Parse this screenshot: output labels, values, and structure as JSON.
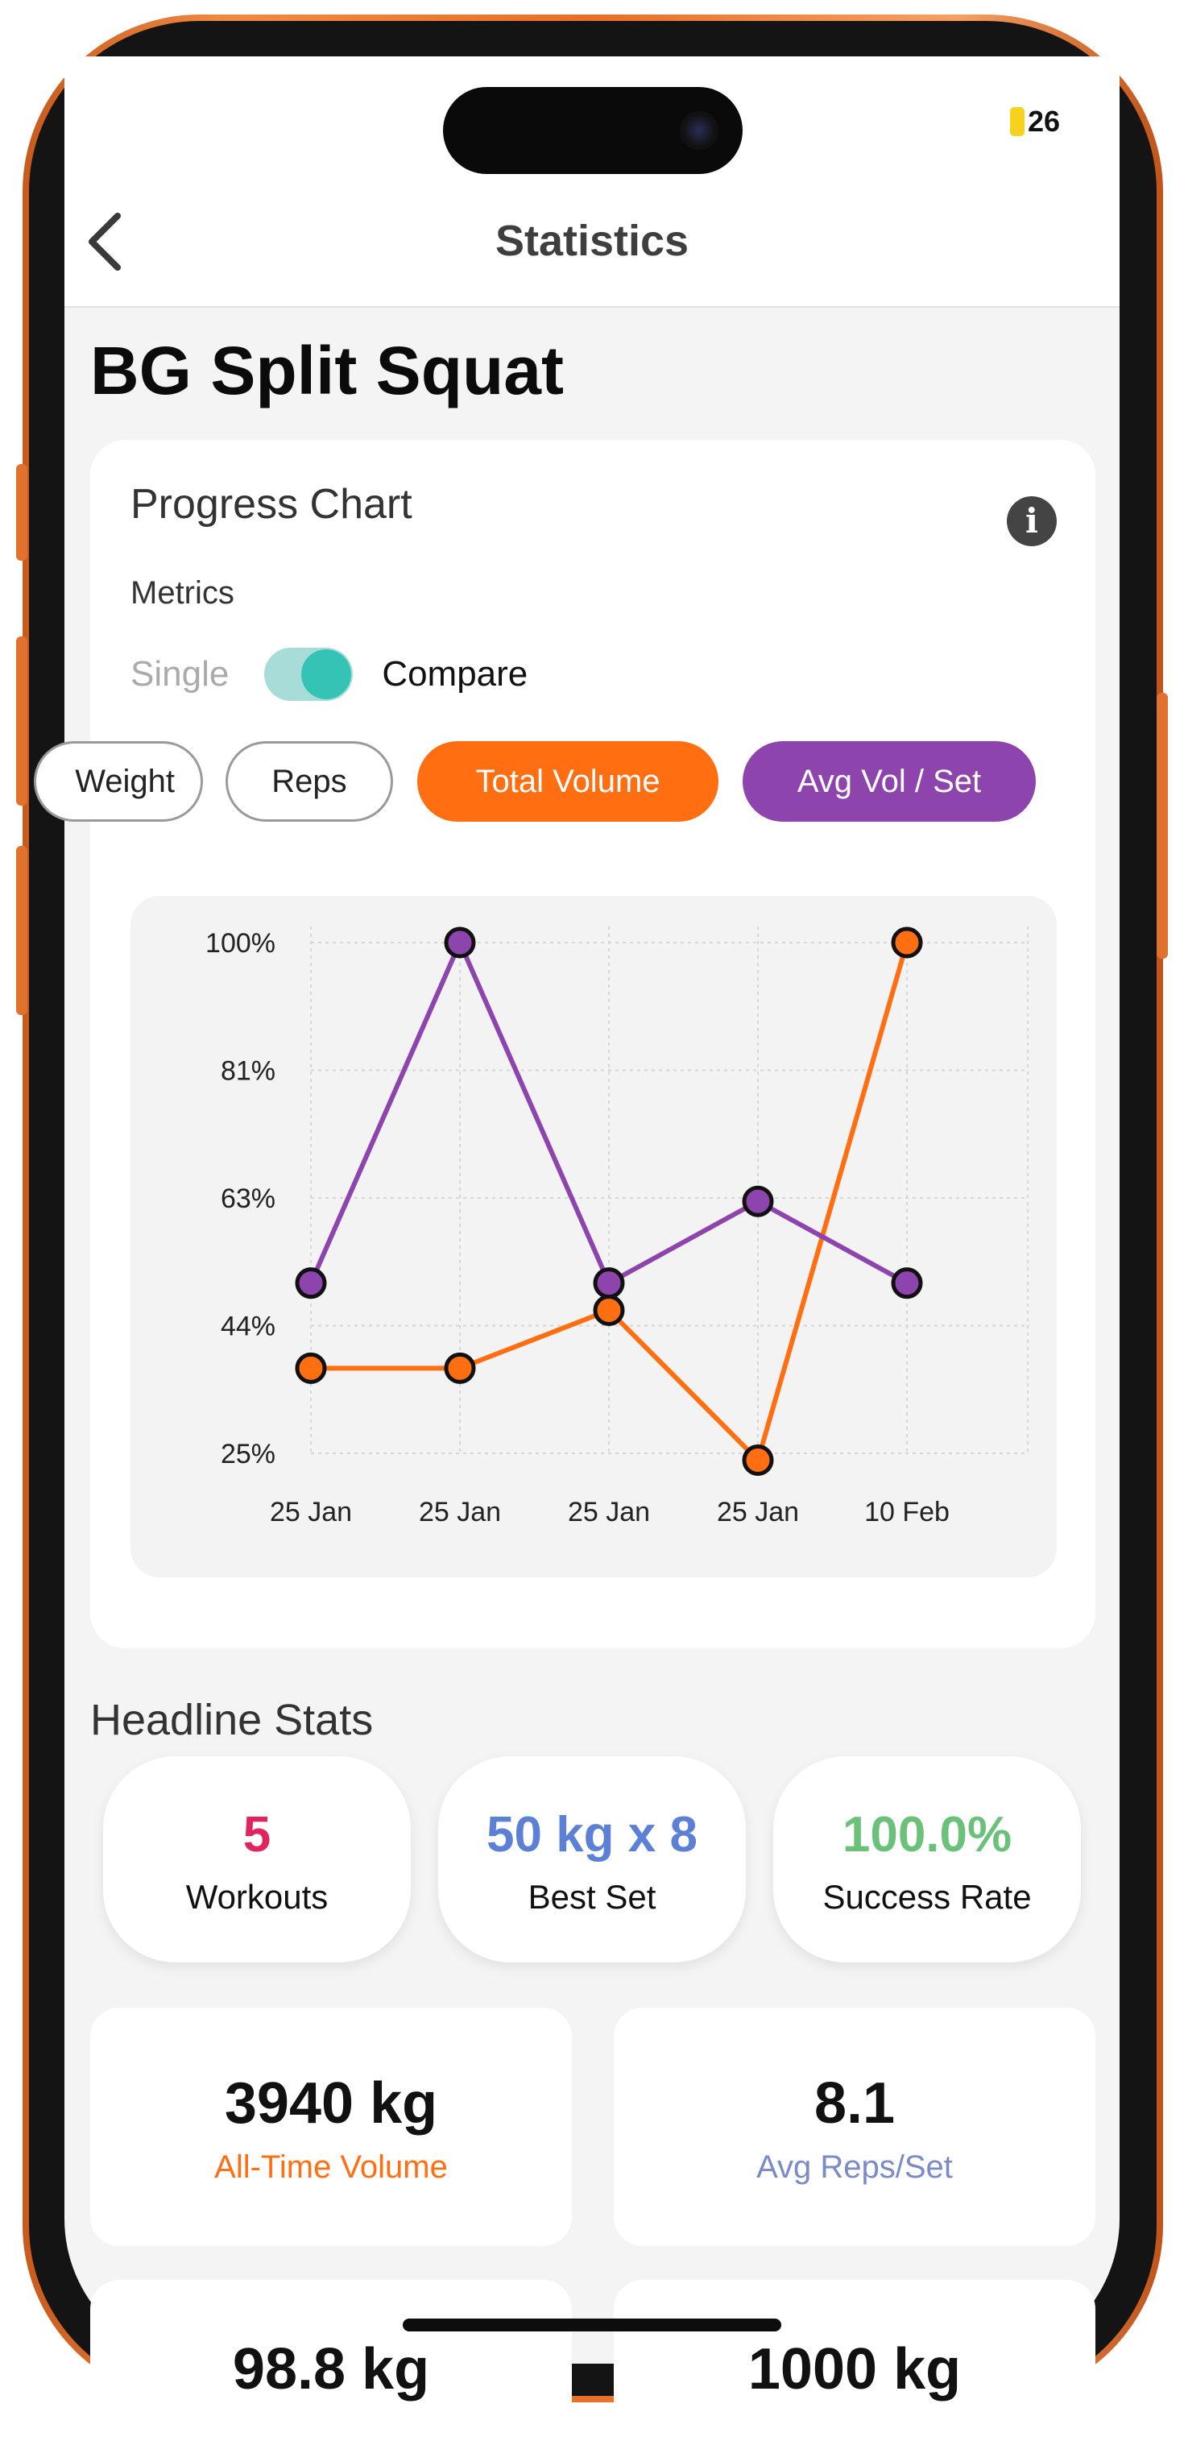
{
  "status": {
    "battery": "26"
  },
  "nav": {
    "title": "Statistics"
  },
  "page": {
    "title": "BG Split Squat"
  },
  "chart_card": {
    "title": "Progress Chart",
    "metrics_label": "Metrics",
    "mode_single": "Single",
    "mode_compare": "Compare",
    "compare_on": true,
    "chips": [
      {
        "label": "Weight",
        "state": "outline"
      },
      {
        "label": "Reps",
        "state": "outline"
      },
      {
        "label": "Total Volume",
        "state": "selected",
        "color": "#ff6e11"
      },
      {
        "label": "Avg Vol / Set",
        "state": "selected",
        "color": "#8d44ad"
      }
    ]
  },
  "chart_data": {
    "type": "line",
    "x": [
      "25 Jan",
      "25 Jan",
      "25 Jan",
      "25 Jan",
      "10 Feb"
    ],
    "yticks": [
      "100%",
      "81%",
      "63%",
      "44%",
      "25%"
    ],
    "ylim": [
      25,
      100
    ],
    "grid": true,
    "series": [
      {
        "name": "Total Volume",
        "color": "#ff6e11",
        "values": [
          37.5,
          37.5,
          46,
          24,
          100
        ]
      },
      {
        "name": "Avg Vol / Set",
        "color": "#8d44ad",
        "values": [
          50,
          100,
          50,
          62,
          50
        ]
      }
    ]
  },
  "headline": {
    "title": "Headline Stats",
    "pills": [
      {
        "value": "5",
        "label": "Workouts",
        "color": "#e0245e"
      },
      {
        "value": "50 kg x 8",
        "label": "Best Set",
        "color": "#5b80d6"
      },
      {
        "value": "100.0%",
        "label": "Success Rate",
        "color": "#6cc17a"
      }
    ],
    "boxes": [
      {
        "value": "3940 kg",
        "label": "All-Time Volume",
        "color": "#ff6e11"
      },
      {
        "value": "8.1",
        "label": "Avg Reps/Set",
        "color": "#7b8ac9"
      }
    ],
    "partial": [
      {
        "value": "98.8 kg"
      },
      {
        "value": "1000 kg"
      }
    ]
  }
}
